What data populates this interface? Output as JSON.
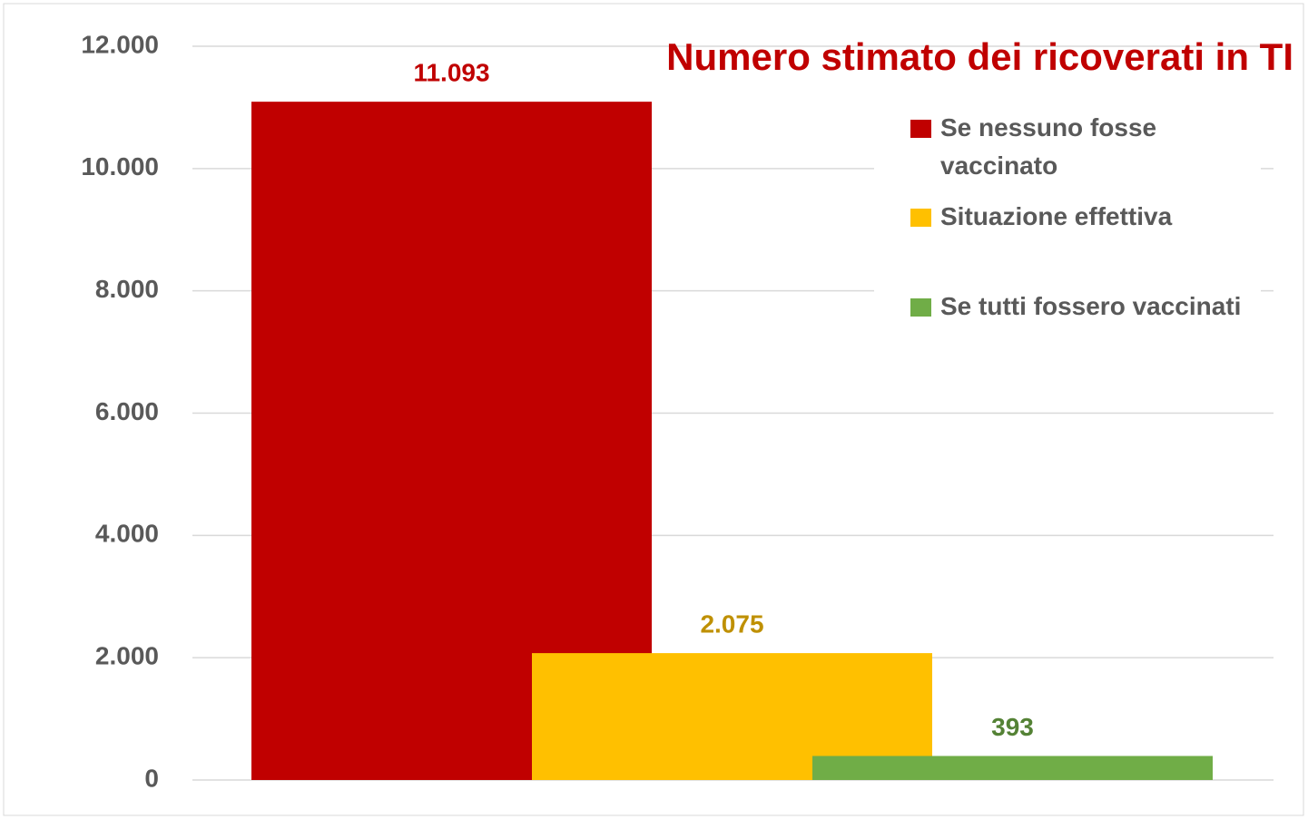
{
  "chart_data": {
    "type": "bar",
    "title": "Numero stimato dei ricoverati in TI",
    "series": [
      {
        "name": "Se nessuno fosse vaccinato",
        "color": "#c00000",
        "label_color": "#c00000",
        "values": [
          11093
        ],
        "value_labels": [
          "11.093"
        ]
      },
      {
        "name": "Situazione effettiva",
        "color": "#ffc000",
        "label_color": "#bf9000",
        "values": [
          2075
        ],
        "value_labels": [
          "2.075"
        ]
      },
      {
        "name": "Se tutti fossero vaccinati",
        "color": "#70ad47",
        "label_color": "#548235",
        "values": [
          393
        ]
      }
    ],
    "ylim": [
      0,
      12000
    ],
    "yticks": [
      0,
      {
        "value": 2000,
        "label": "2.000"
      },
      {
        "value": 4000,
        "label": "4.000"
      },
      {
        "value": 6000,
        "label": "6.000"
      },
      {
        "value": 8000,
        "label": "8.000"
      },
      {
        "value": 10000,
        "label": "10.000"
      },
      {
        "value": 12000,
        "label": "12.000"
      }
    ],
    "grid": true,
    "legend": "right"
  }
}
